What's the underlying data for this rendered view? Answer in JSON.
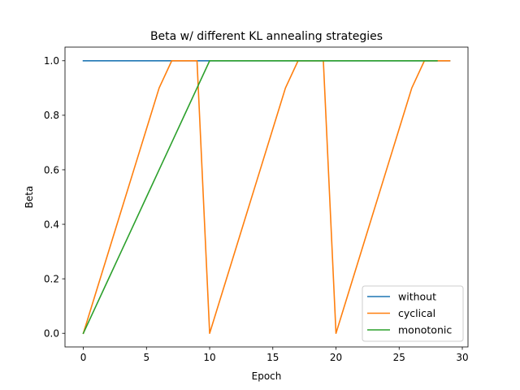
{
  "chart_data": {
    "type": "line",
    "title": "Beta w/ different KL annealing strategies",
    "xlabel": "Epoch",
    "ylabel": "Beta",
    "xlim": [
      -1.45,
      30.45
    ],
    "ylim": [
      -0.05,
      1.05
    ],
    "xticks": [
      "0",
      "5",
      "10",
      "15",
      "20",
      "25",
      "30"
    ],
    "yticks": [
      "0.0",
      "0.2",
      "0.4",
      "0.6",
      "0.8",
      "1.0"
    ],
    "grid": false,
    "legend_position": "lower-right",
    "series": [
      {
        "name": "without",
        "color": "#1f77b4",
        "x": [
          0,
          1,
          2,
          3,
          4,
          5,
          6,
          7,
          8,
          9,
          10,
          11,
          12,
          13,
          14,
          15,
          16,
          17,
          18,
          19,
          20,
          21,
          22,
          23,
          24,
          25,
          26,
          27,
          28,
          29
        ],
        "y": [
          1,
          1,
          1,
          1,
          1,
          1,
          1,
          1,
          1,
          1,
          1,
          1,
          1,
          1,
          1,
          1,
          1,
          1,
          1,
          1,
          1,
          1,
          1,
          1,
          1,
          1,
          1,
          1,
          1,
          1
        ]
      },
      {
        "name": "cyclical",
        "color": "#ff7f0e",
        "x": [
          0,
          1,
          2,
          3,
          4,
          5,
          6,
          7,
          8,
          9,
          10,
          11,
          12,
          13,
          14,
          15,
          16,
          17,
          18,
          19,
          20,
          21,
          22,
          23,
          24,
          25,
          26,
          27,
          28,
          29
        ],
        "y": [
          0,
          0.15,
          0.3,
          0.45,
          0.6,
          0.75,
          0.9,
          1,
          1,
          1,
          0,
          0.15,
          0.3,
          0.45,
          0.6,
          0.75,
          0.9,
          1,
          1,
          1,
          0,
          0.15,
          0.3,
          0.45,
          0.6,
          0.75,
          0.9,
          1,
          1,
          1
        ]
      },
      {
        "name": "monotonic",
        "color": "#2ca02c",
        "x": [
          0,
          1,
          2,
          3,
          4,
          5,
          6,
          7,
          8,
          9,
          10,
          11,
          12,
          13,
          14,
          15,
          16,
          17,
          18,
          19,
          20,
          21,
          22,
          23,
          24,
          25,
          26,
          27,
          28
        ],
        "y": [
          0,
          0.1,
          0.2,
          0.3,
          0.4,
          0.5,
          0.6,
          0.7,
          0.8,
          0.9,
          1,
          1,
          1,
          1,
          1,
          1,
          1,
          1,
          1,
          1,
          1,
          1,
          1,
          1,
          1,
          1,
          1,
          1,
          1
        ]
      }
    ]
  }
}
